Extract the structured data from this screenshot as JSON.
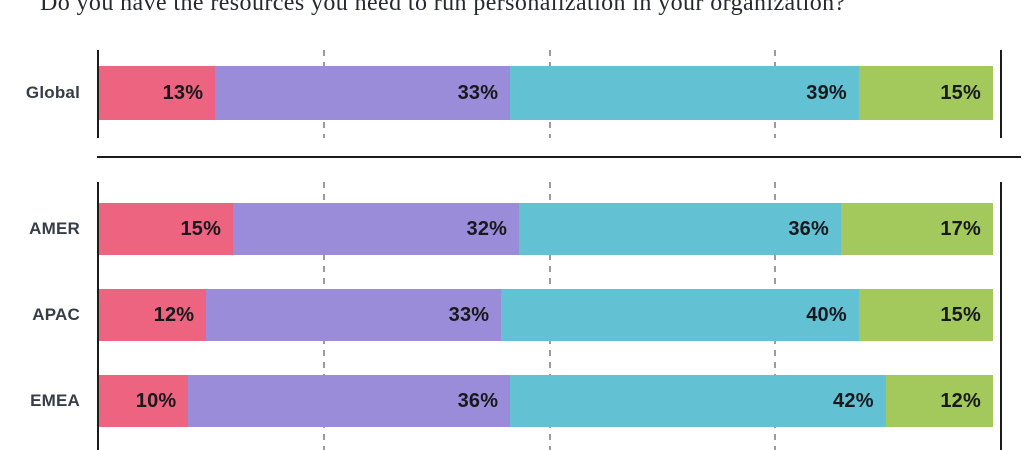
{
  "title": "Do you have the resources you need to run personalization in your organization?",
  "chart_data": {
    "type": "bar",
    "orientation": "horizontal",
    "stacked": true,
    "title": "Do you have the resources you need to run personalization in your organization?",
    "unit": "%",
    "legend": "none",
    "segment_colors": [
      "#ED6480",
      "#9A8CD9",
      "#62C1D3",
      "#A3C85C"
    ],
    "x_axis": {
      "min": 0,
      "max": 100,
      "gridlines_percent": [
        25,
        50,
        75
      ],
      "gridline_style": "dashed",
      "tick_labels_visible": false
    },
    "groups": [
      {
        "name": "global",
        "rows": [
          {
            "label": "Global",
            "values": [
              13,
              33,
              39,
              15
            ]
          }
        ]
      },
      {
        "name": "regions",
        "rows": [
          {
            "label": "AMER",
            "values": [
              15,
              32,
              36,
              17
            ]
          },
          {
            "label": "APAC",
            "values": [
              12,
              33,
              40,
              15
            ]
          },
          {
            "label": "EMEA",
            "values": [
              10,
              36,
              42,
              12
            ]
          }
        ]
      }
    ]
  },
  "colors": {
    "axis": "#1b1b1b",
    "gridline": "#9c9c9c",
    "divider": "#1b1b1b",
    "category_label": "#363d47",
    "value_label": "#17191c",
    "title": "#26292e",
    "background": "#ffffff"
  }
}
